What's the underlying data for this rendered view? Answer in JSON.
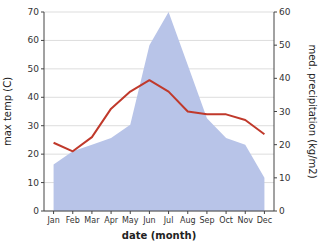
{
  "chart_data": {
    "type": "line",
    "categories": [
      "Jan",
      "Feb",
      "Mar",
      "Apr",
      "May",
      "Jun",
      "Jul",
      "Aug",
      "Sep",
      "Oct",
      "Nov",
      "Dec"
    ],
    "series": [
      {
        "type": "area",
        "axis": "y2",
        "color": "#b8c4e8",
        "values": [
          14,
          18,
          20,
          22,
          26,
          50,
          60,
          44,
          28,
          22,
          20,
          10
        ]
      },
      {
        "type": "line",
        "color": "#c0392b",
        "values": [
          24,
          21,
          26,
          36,
          42,
          46,
          42,
          35,
          34,
          34,
          32,
          27
        ]
      }
    ],
    "x_label": "date (month)",
    "y_label": "max temp (C)",
    "y2_label": "med. precipitation (kg/m2)",
    "ylim": [
      0,
      70
    ],
    "yticks": [
      0,
      10,
      20,
      30,
      40,
      50,
      60,
      70
    ],
    "y2lim": [
      0,
      60
    ],
    "y2ticks": [
      0,
      10,
      20,
      30,
      40,
      50,
      60
    ],
    "grid": true
  }
}
